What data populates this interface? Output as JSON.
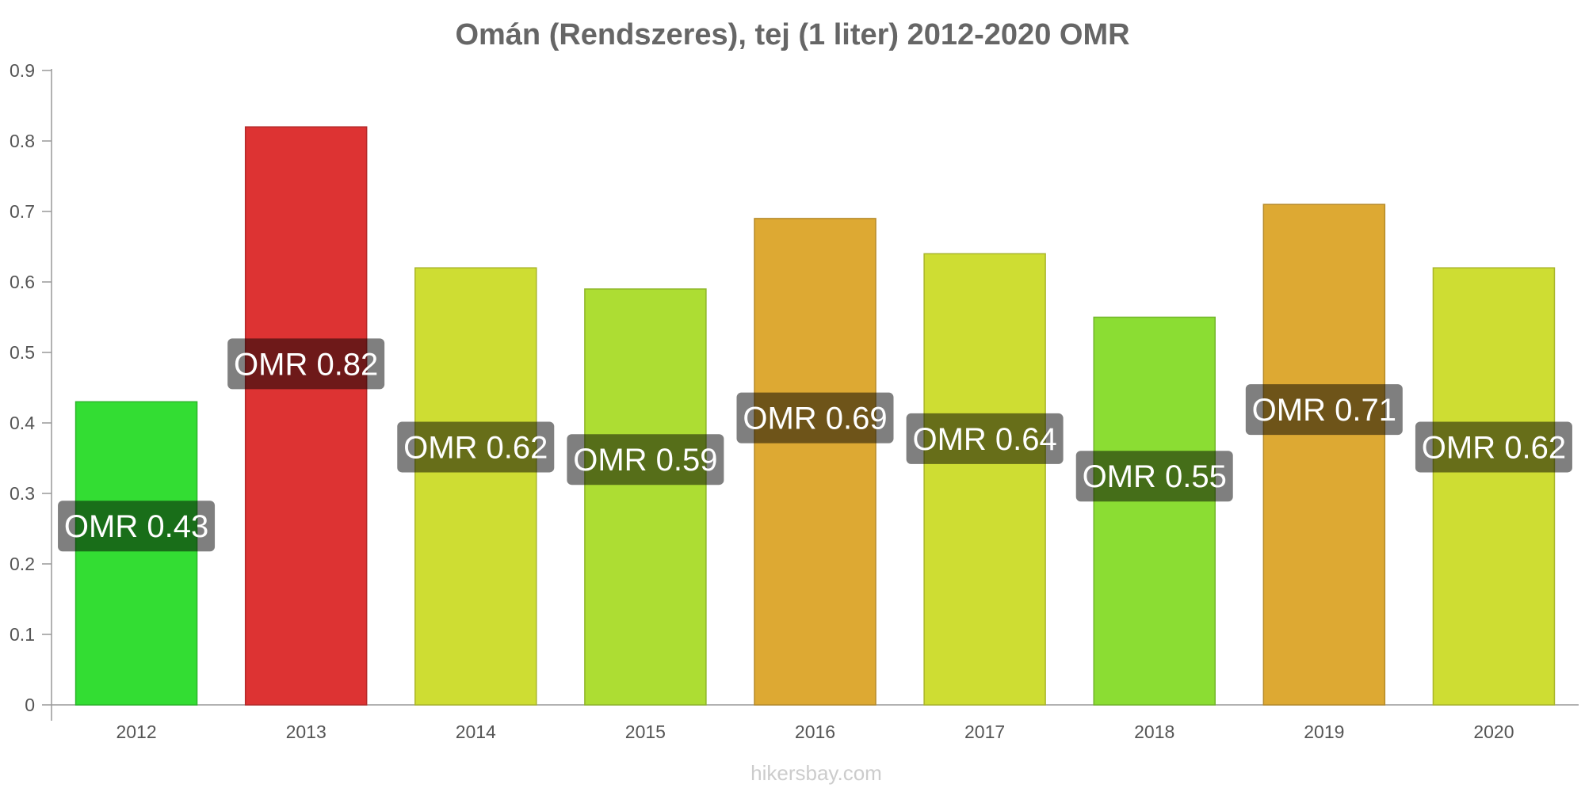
{
  "chart_data": {
    "type": "bar",
    "title": "Omán (Rendszeres), tej (1 liter) 2012-2020 OMR",
    "categories": [
      "2012",
      "2013",
      "2014",
      "2015",
      "2016",
      "2017",
      "2018",
      "2019",
      "2020"
    ],
    "values": [
      0.43,
      0.82,
      0.62,
      0.59,
      0.69,
      0.64,
      0.55,
      0.71,
      0.62
    ],
    "data_labels": [
      "OMR 0.43",
      "OMR 0.82",
      "OMR 0.62",
      "OMR 0.59",
      "OMR 0.69",
      "OMR 0.64",
      "OMR 0.55",
      "OMR 0.71",
      "OMR 0.62"
    ],
    "bar_colors": [
      "#33dd33",
      "#dd3333",
      "#cedd33",
      "#addd33",
      "#dda933",
      "#cedd33",
      "#8bdd33",
      "#dda933",
      "#cedd33"
    ],
    "bar_border_colors": [
      "#2ab52a",
      "#b52a2a",
      "#a9b52a",
      "#8eb52a",
      "#b58a2a",
      "#a9b52a",
      "#72b52a",
      "#b58a2a",
      "#a9b52a"
    ],
    "yticks": [
      "0",
      "0.1",
      "0.2",
      "0.3",
      "0.4",
      "0.5",
      "0.6",
      "0.7",
      "0.8",
      "0.9"
    ],
    "ylim": [
      0,
      0.9
    ],
    "xlabel": "",
    "ylabel": "",
    "grid": false,
    "legend": "none"
  },
  "watermark": "hikersbay.com",
  "colors": {
    "axis": "#999999",
    "title": "#666666",
    "label_bg": "#000000"
  }
}
